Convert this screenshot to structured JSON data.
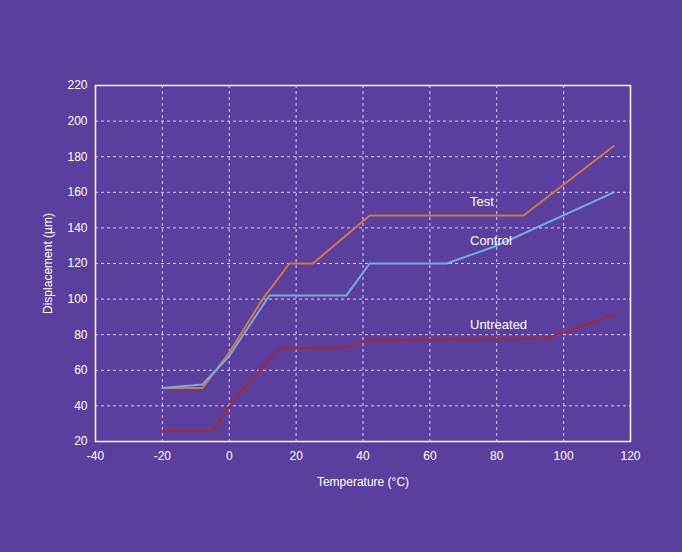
{
  "chart_data": {
    "type": "line",
    "x_label": "Temperature (°C)",
    "y_label": "Displacement (µm)",
    "xlim": [
      -40,
      120
    ],
    "xticks": [
      -40,
      -20,
      0,
      20,
      40,
      60,
      80,
      100,
      120
    ],
    "ylim": [
      20,
      220
    ],
    "yticks": [
      20,
      40,
      60,
      80,
      100,
      120,
      140,
      160,
      180,
      200,
      220
    ],
    "grid": true,
    "series": [
      {
        "name": "Test",
        "color": "#cf7a3e",
        "x": [
          -20,
          -8,
          0,
          10,
          18,
          25,
          42,
          88,
          115
        ],
        "values": [
          50,
          50,
          70,
          100,
          120,
          120,
          147,
          147,
          186
        ]
      },
      {
        "name": "Control",
        "color": "#72aee0",
        "x": [
          -20,
          -8,
          0,
          12,
          35,
          42,
          65,
          80,
          115
        ],
        "values": [
          50,
          52,
          68,
          102,
          102,
          120,
          120,
          130,
          160
        ]
      },
      {
        "name": "Untreated",
        "color": "#a8282c",
        "x": [
          -20,
          -5,
          2,
          15,
          35,
          42,
          95,
          115
        ],
        "values": [
          26,
          26,
          45,
          72,
          73,
          77,
          78,
          91
        ]
      }
    ]
  }
}
